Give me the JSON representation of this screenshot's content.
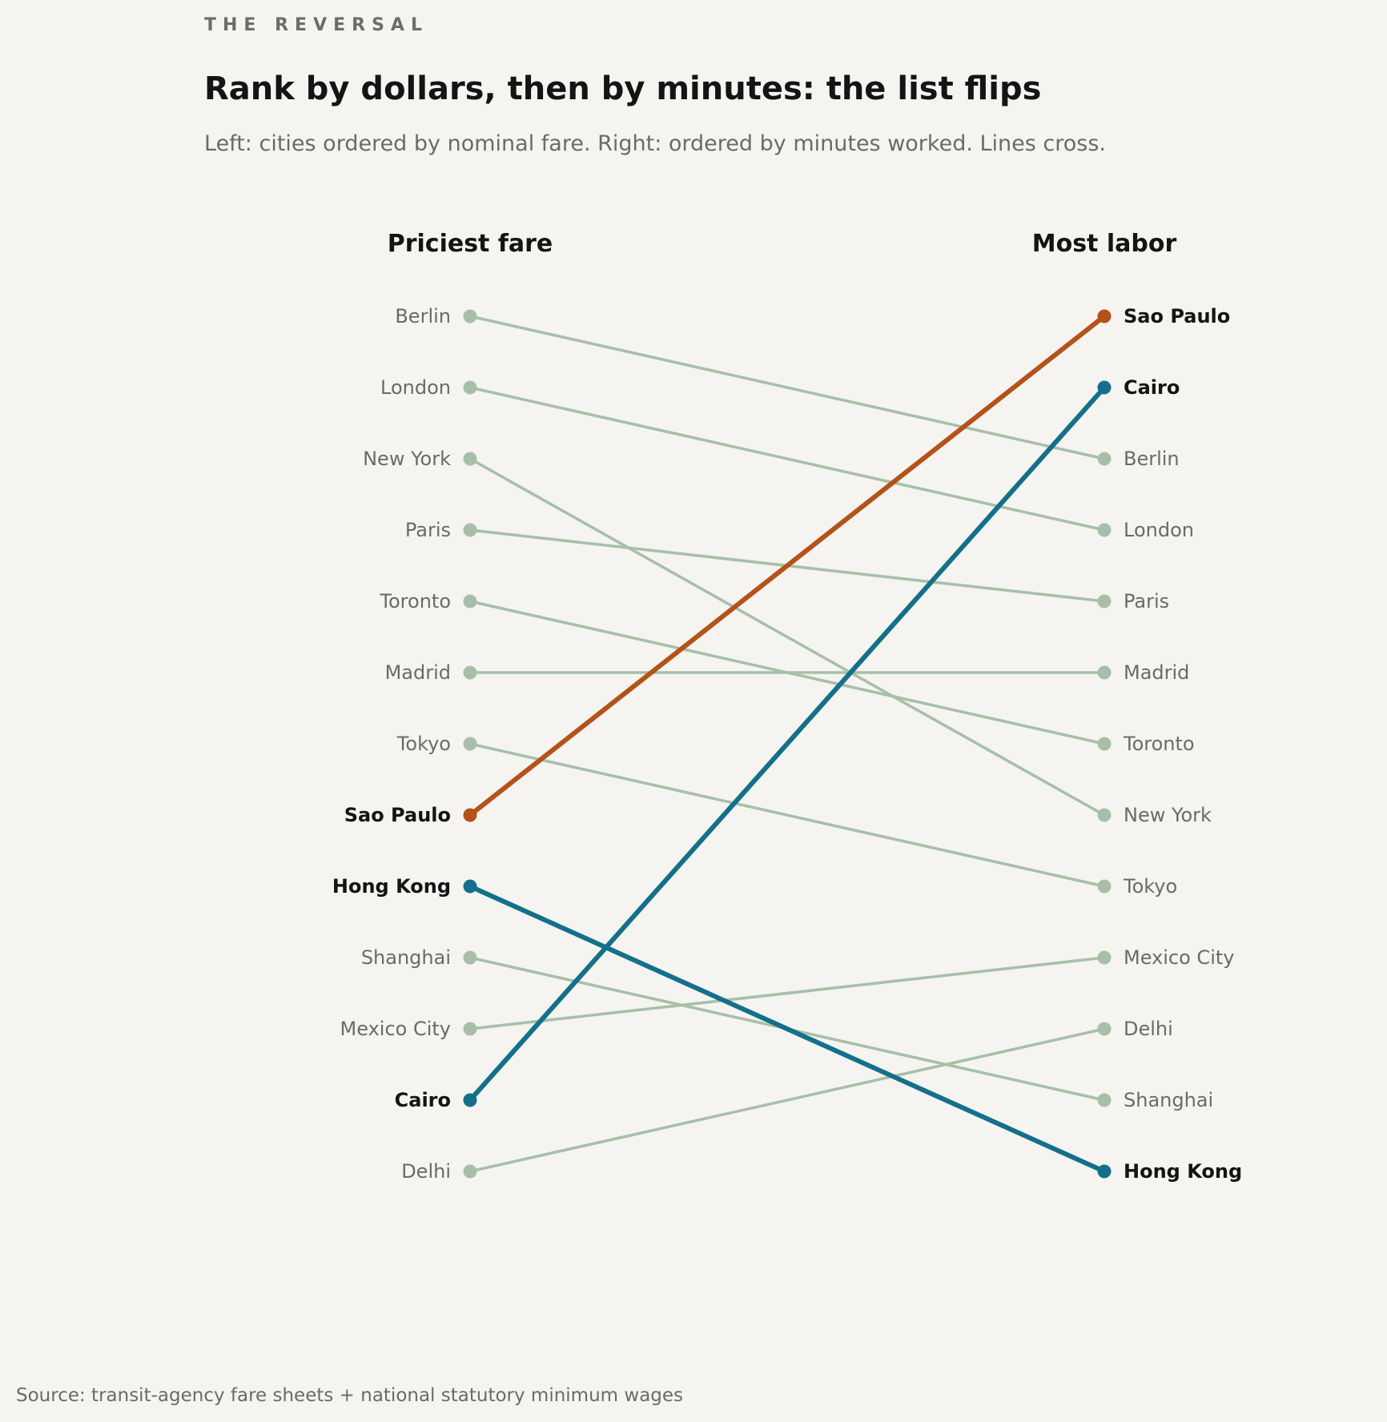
{
  "chart_data": {
    "type": "slope",
    "kicker": "THE REVERSAL",
    "title": "Rank by dollars, then by minutes: the list flips",
    "subtitle": "Left: cities ordered by nominal fare. Right: ordered by minutes worked. Lines cross.",
    "left_label": "Priciest fare",
    "right_label": "Most labor",
    "source": "Source: transit-agency fare sheets + national statutory minimum wages",
    "colors": {
      "default": "#a7bfa8",
      "sao_paulo": "#b4521a",
      "accent_blue": "#14708a"
    },
    "cities": [
      {
        "name": "Berlin",
        "left_rank": 1,
        "right_rank": 3,
        "highlight": false,
        "color": "#a7bfa8"
      },
      {
        "name": "London",
        "left_rank": 2,
        "right_rank": 4,
        "highlight": false,
        "color": "#a7bfa8"
      },
      {
        "name": "New York",
        "left_rank": 3,
        "right_rank": 8,
        "highlight": false,
        "color": "#a7bfa8"
      },
      {
        "name": "Paris",
        "left_rank": 4,
        "right_rank": 5,
        "highlight": false,
        "color": "#a7bfa8"
      },
      {
        "name": "Toronto",
        "left_rank": 5,
        "right_rank": 7,
        "highlight": false,
        "color": "#a7bfa8"
      },
      {
        "name": "Madrid",
        "left_rank": 6,
        "right_rank": 6,
        "highlight": false,
        "color": "#a7bfa8"
      },
      {
        "name": "Tokyo",
        "left_rank": 7,
        "right_rank": 9,
        "highlight": false,
        "color": "#a7bfa8"
      },
      {
        "name": "Sao Paulo",
        "left_rank": 8,
        "right_rank": 1,
        "highlight": true,
        "color": "#b4521a"
      },
      {
        "name": "Hong Kong",
        "left_rank": 9,
        "right_rank": 13,
        "highlight": true,
        "color": "#14708a"
      },
      {
        "name": "Shanghai",
        "left_rank": 10,
        "right_rank": 12,
        "highlight": false,
        "color": "#a7bfa8"
      },
      {
        "name": "Mexico City",
        "left_rank": 11,
        "right_rank": 10,
        "highlight": false,
        "color": "#a7bfa8"
      },
      {
        "name": "Cairo",
        "left_rank": 12,
        "right_rank": 2,
        "highlight": true,
        "color": "#14708a"
      },
      {
        "name": "Delhi",
        "left_rank": 13,
        "right_rank": 11,
        "highlight": false,
        "color": "#a7bfa8"
      }
    ]
  }
}
